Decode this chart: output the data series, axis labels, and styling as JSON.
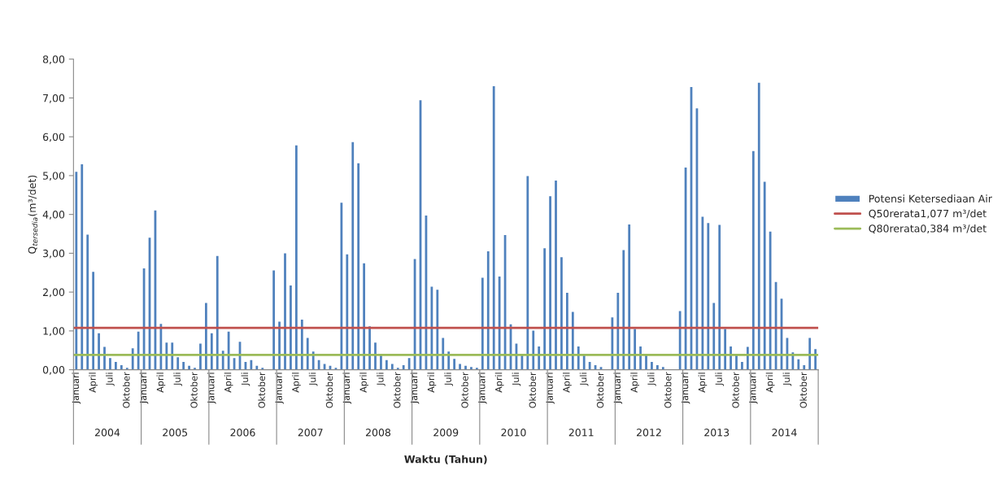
{
  "chart_data": {
    "type": "bar",
    "xlabel": "Waktu (Tahun)",
    "ylabel": "Q$_{tersedia}$(m³/det)",
    "categories": [
      "Januari",
      null,
      null,
      "April",
      null,
      null,
      "Juli",
      null,
      null,
      "Oktober",
      null,
      null,
      "Januari",
      null,
      null,
      "April",
      null,
      null,
      "Juli",
      null,
      null,
      "Oktober",
      null,
      null,
      "Januari",
      null,
      null,
      "April",
      null,
      null,
      "Juli",
      null,
      null,
      "Oktober",
      null,
      null,
      "Januari",
      null,
      null,
      "April",
      null,
      null,
      "Juli",
      null,
      null,
      "Oktober",
      null,
      null,
      "Januari",
      null,
      null,
      "April",
      null,
      null,
      "Juli",
      null,
      null,
      "Oktober",
      null,
      null,
      "Januari",
      null,
      null,
      "April",
      null,
      null,
      "Juli",
      null,
      null,
      "Oktober",
      null,
      null,
      "Januari",
      null,
      null,
      "April",
      null,
      null,
      "Juli",
      null,
      null,
      "Oktober",
      null,
      null,
      "Januari",
      null,
      null,
      "April",
      null,
      null,
      "Juli",
      null,
      null,
      "Oktober",
      null,
      null,
      "Januari",
      null,
      null,
      "April",
      null,
      null,
      "Juli",
      null,
      null,
      "Oktober",
      null,
      null,
      "Januari",
      null,
      null,
      "April",
      null,
      null,
      "Juli",
      null,
      null,
      "Oktober",
      null,
      null,
      "Januari",
      null,
      null,
      "April",
      null,
      null,
      "Juli",
      null,
      null,
      "Oktober",
      null,
      null
    ],
    "series": [
      {
        "name": "Potensi Ketersediaan Air",
        "color": "#4f81bd",
        "values": [
          5.1,
          5.29,
          3.48,
          2.52,
          0.94,
          0.59,
          0.3,
          0.2,
          0.12,
          0.05,
          0.55,
          0.98,
          2.61,
          3.4,
          4.1,
          1.18,
          0.7,
          0.7,
          0.32,
          0.2,
          0.1,
          0.05,
          0.67,
          1.72,
          0.94,
          2.93,
          0.49,
          0.98,
          0.3,
          0.72,
          0.2,
          0.25,
          0.1,
          0.05,
          null,
          2.56,
          1.24,
          3.0,
          2.17,
          5.78,
          1.29,
          0.82,
          0.47,
          0.25,
          0.15,
          0.1,
          0.05,
          4.3,
          2.97,
          5.86,
          5.32,
          2.74,
          1.12,
          0.7,
          0.4,
          0.25,
          0.15,
          0.05,
          0.12,
          0.3,
          2.85,
          6.94,
          3.97,
          2.14,
          2.06,
          0.82,
          0.47,
          0.28,
          0.15,
          0.1,
          0.07,
          0.05,
          2.37,
          3.05,
          7.3,
          2.4,
          3.47,
          1.17,
          0.67,
          0.4,
          4.99,
          1.01,
          0.6,
          3.13,
          4.47,
          4.87,
          2.9,
          1.98,
          1.49,
          0.6,
          0.38,
          0.2,
          0.12,
          0.07,
          null,
          1.35,
          1.98,
          3.08,
          3.74,
          1.05,
          0.6,
          0.39,
          0.2,
          0.12,
          0.07,
          null,
          null,
          1.51,
          5.21,
          7.28,
          6.73,
          3.94,
          3.78,
          1.72,
          3.73,
          1.05,
          0.6,
          0.38,
          0.2,
          0.59,
          5.63,
          7.39,
          4.84,
          3.56,
          2.26,
          1.83,
          0.82,
          0.45,
          0.27,
          0.12,
          0.82,
          0.53
        ]
      }
    ],
    "ylim": [
      0,
      8
    ],
    "yticks": [
      {
        "value": 0,
        "label": "0,00"
      },
      {
        "value": 1,
        "label": "1,00"
      },
      {
        "value": 2,
        "label": "2,00"
      },
      {
        "value": 3,
        "label": "3,00"
      },
      {
        "value": 4,
        "label": "4,00"
      },
      {
        "value": 5,
        "label": "5,00"
      },
      {
        "value": 6,
        "label": "6,00"
      },
      {
        "value": 7,
        "label": "7,00"
      },
      {
        "value": 8,
        "label": "8,00"
      }
    ],
    "ref_lines": [
      {
        "axis": "y",
        "value": 1.077,
        "label": "Q50rerata1,077 m³/det",
        "color": "#c0504d"
      },
      {
        "axis": "y",
        "value": 0.384,
        "label": "Q80rerata0,384 m³/det",
        "color": "#9bbb59"
      }
    ],
    "annotations": [
      "2004",
      "2005",
      "2006",
      "2007",
      "2008",
      "2009",
      "2010",
      "2011",
      "2012",
      "2013",
      "2014"
    ],
    "grid": false,
    "legend": "right"
  }
}
